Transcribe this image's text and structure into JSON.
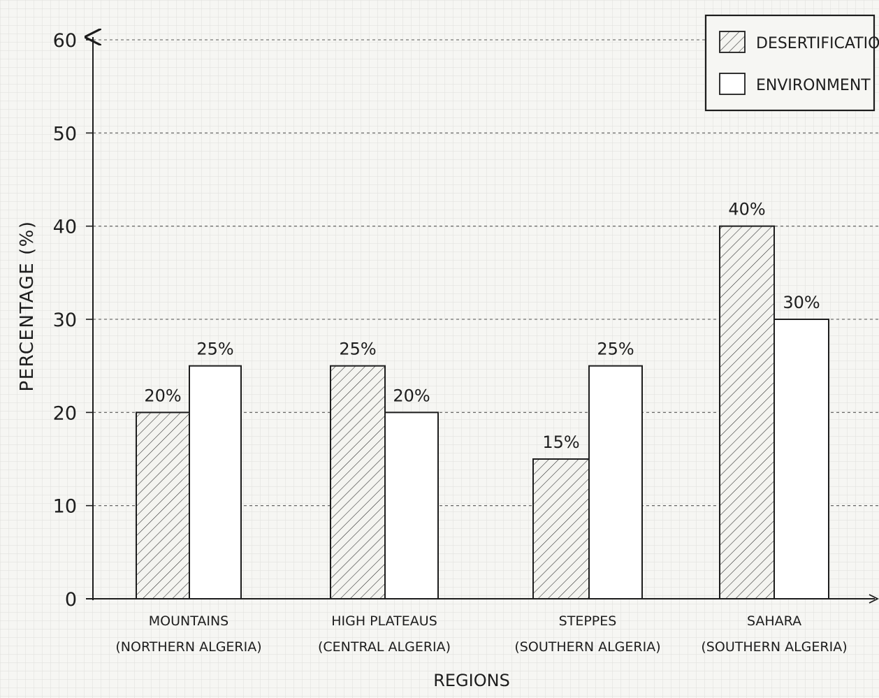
{
  "chart_data": {
    "type": "bar",
    "title": "",
    "xlabel": "REGIONS",
    "ylabel": "PERCENTAGE (%)",
    "ylim": [
      0,
      60
    ],
    "yticks": [
      "0",
      "10",
      "20",
      "30",
      "40",
      "50",
      "60"
    ],
    "grid": true,
    "legend_position": "top-right",
    "categories": [
      {
        "line1": "MOUNTAINS",
        "line2": "(NORTHERN ALGERIA)"
      },
      {
        "line1": "HIGH PLATEAUS",
        "line2": "(CENTRAL ALGERIA)"
      },
      {
        "line1": "STEPPES",
        "line2": "(SOUTHERN ALGERIA)"
      },
      {
        "line1": "SAHARA",
        "line2": "(SOUTHERN ALGERIA)"
      }
    ],
    "series": [
      {
        "name": "DESERTIFICATION",
        "pattern": "hatched",
        "values": [
          20,
          25,
          15,
          40
        ],
        "labels": [
          "20%",
          "25%",
          "15%",
          "40%"
        ]
      },
      {
        "name": "ENVIRONMENT",
        "pattern": "plain",
        "values": [
          25,
          20,
          25,
          30
        ],
        "labels": [
          "25%",
          "20%",
          "25%",
          "30%"
        ]
      }
    ]
  },
  "colors": {
    "background": "#f6f6f3",
    "grid_minor": "#dfdfdb",
    "ink": "#1d1d1d",
    "bar_fill": "#ffffff"
  }
}
